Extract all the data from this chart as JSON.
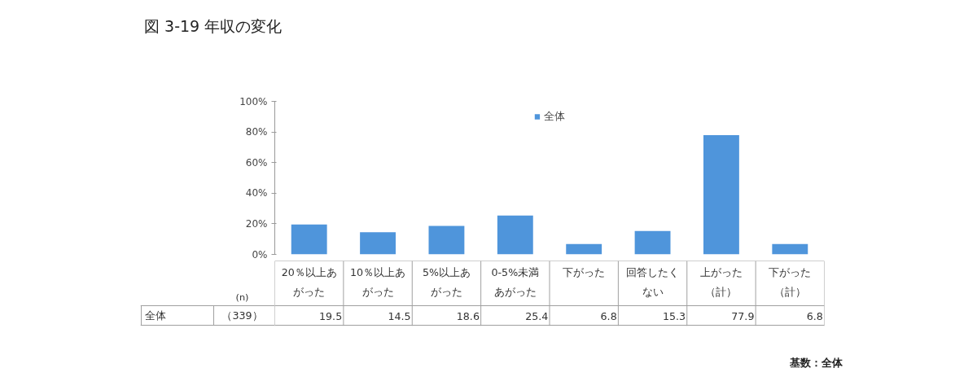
{
  "chart_data": {
    "type": "bar",
    "title": "図 3-19  年収の変化",
    "categories": [
      "20％以上あがった",
      "10％以上あがった",
      "5%以上あがった",
      "0-5%未満あがった",
      "下がった",
      "回答したくない",
      "上がった（計）",
      "下がった（計）"
    ],
    "series": [
      {
        "name": "全体",
        "color": "#4f95db",
        "values": [
          19.5,
          14.5,
          18.6,
          25.4,
          6.8,
          15.3,
          77.9,
          6.8
        ]
      }
    ],
    "ylim": [
      0,
      100
    ],
    "yticks": [
      {
        "value": 0,
        "label": "0%"
      },
      {
        "value": 20,
        "label": "20%"
      },
      {
        "value": 40,
        "label": "40%"
      },
      {
        "value": 60,
        "label": "60%"
      },
      {
        "value": 80,
        "label": "80%"
      },
      {
        "value": 100,
        "label": "100%"
      }
    ],
    "legend": "top",
    "data_labels": true,
    "grid": false,
    "annotations": [
      "(n)",
      "（339）",
      "基数：全体"
    ]
  }
}
